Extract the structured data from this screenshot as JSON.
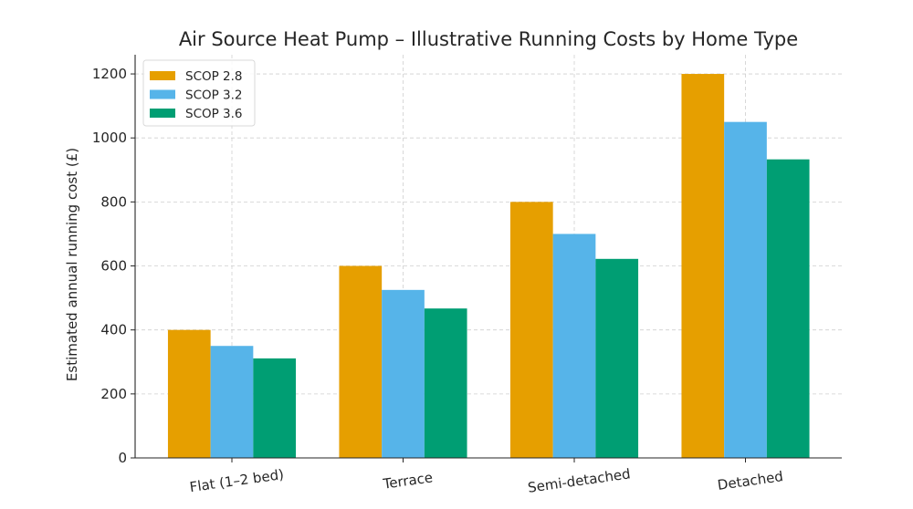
{
  "chart_data": {
    "type": "bar",
    "title": "Air Source Heat Pump – Illustrative Running Costs by Home Type",
    "xlabel": "",
    "ylabel": "Estimated annual running cost (£)",
    "categories": [
      "Flat (1–2 bed)",
      "Terrace",
      "Semi-detached",
      "Detached"
    ],
    "series": [
      {
        "name": "SCOP 2.8",
        "color": "#E69F00",
        "values": [
          400,
          600,
          800,
          1200
        ]
      },
      {
        "name": "SCOP 3.2",
        "color": "#56B4E9",
        "values": [
          350,
          525,
          700,
          1050
        ]
      },
      {
        "name": "SCOP 3.6",
        "color": "#009E73",
        "values": [
          311,
          467,
          622,
          933
        ]
      }
    ],
    "ylim": [
      0,
      1260
    ],
    "yticks": [
      0,
      200,
      400,
      600,
      800,
      1000,
      1200
    ],
    "grid": true,
    "legend_position": "top-left"
  }
}
